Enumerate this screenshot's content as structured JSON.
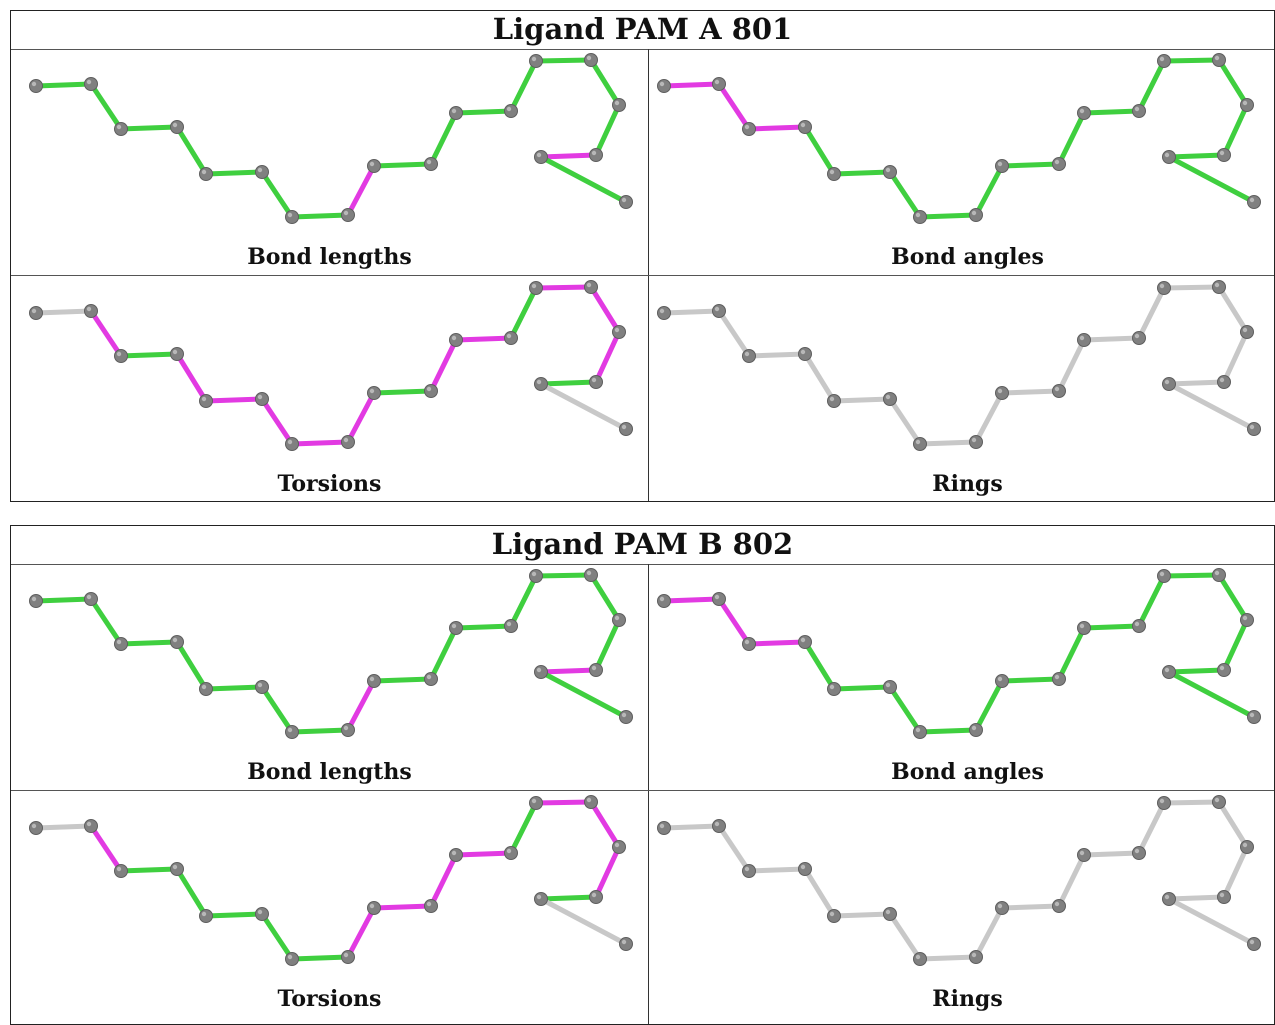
{
  "colors": {
    "ok": "#3fcf3f",
    "outlier": "#e23ae2",
    "neutral": "#c8c8c8",
    "atom": "#808080"
  },
  "blocks": [
    {
      "title": "Ligand PAM A 801",
      "panels": [
        {
          "label": "Bond lengths",
          "bonds": [
            "g",
            "g",
            "g",
            "g",
            "g",
            "g",
            "g",
            "m",
            "g",
            "g",
            "g",
            "g",
            "g",
            "g",
            "g",
            "m",
            "g",
            "m"
          ]
        },
        {
          "label": "Bond angles",
          "bonds": [
            "m",
            "m",
            "m",
            "g",
            "g",
            "g",
            "g",
            "g",
            "g",
            "g",
            "g",
            "g",
            "g",
            "g",
            "g",
            "g",
            "g",
            "g"
          ]
        },
        {
          "label": "Torsions",
          "bonds": [
            "n",
            "m",
            "g",
            "m",
            "m",
            "m",
            "m",
            "m",
            "g",
            "m",
            "m",
            "g",
            "m",
            "m",
            "m",
            "g",
            "n",
            "n"
          ]
        },
        {
          "label": "Rings",
          "bonds": [
            "n",
            "n",
            "n",
            "n",
            "n",
            "n",
            "n",
            "n",
            "n",
            "n",
            "n",
            "n",
            "n",
            "n",
            "n",
            "n",
            "n",
            "n"
          ]
        }
      ]
    },
    {
      "title": "Ligand PAM B 802",
      "panels": [
        {
          "label": "Bond lengths",
          "bonds": [
            "g",
            "g",
            "g",
            "g",
            "g",
            "g",
            "g",
            "m",
            "g",
            "g",
            "g",
            "g",
            "g",
            "g",
            "g",
            "m",
            "g",
            "m"
          ]
        },
        {
          "label": "Bond angles",
          "bonds": [
            "m",
            "m",
            "m",
            "g",
            "g",
            "g",
            "g",
            "g",
            "g",
            "g",
            "g",
            "g",
            "g",
            "g",
            "g",
            "g",
            "g",
            "g"
          ]
        },
        {
          "label": "Torsions",
          "bonds": [
            "n",
            "m",
            "g",
            "g",
            "g",
            "g",
            "g",
            "m",
            "m",
            "m",
            "m",
            "g",
            "m",
            "m",
            "m",
            "g",
            "n",
            "n"
          ]
        },
        {
          "label": "Rings",
          "bonds": [
            "n",
            "n",
            "n",
            "n",
            "n",
            "n",
            "n",
            "n",
            "n",
            "n",
            "n",
            "n",
            "n",
            "n",
            "n",
            "n",
            "n",
            "n"
          ]
        }
      ]
    }
  ]
}
